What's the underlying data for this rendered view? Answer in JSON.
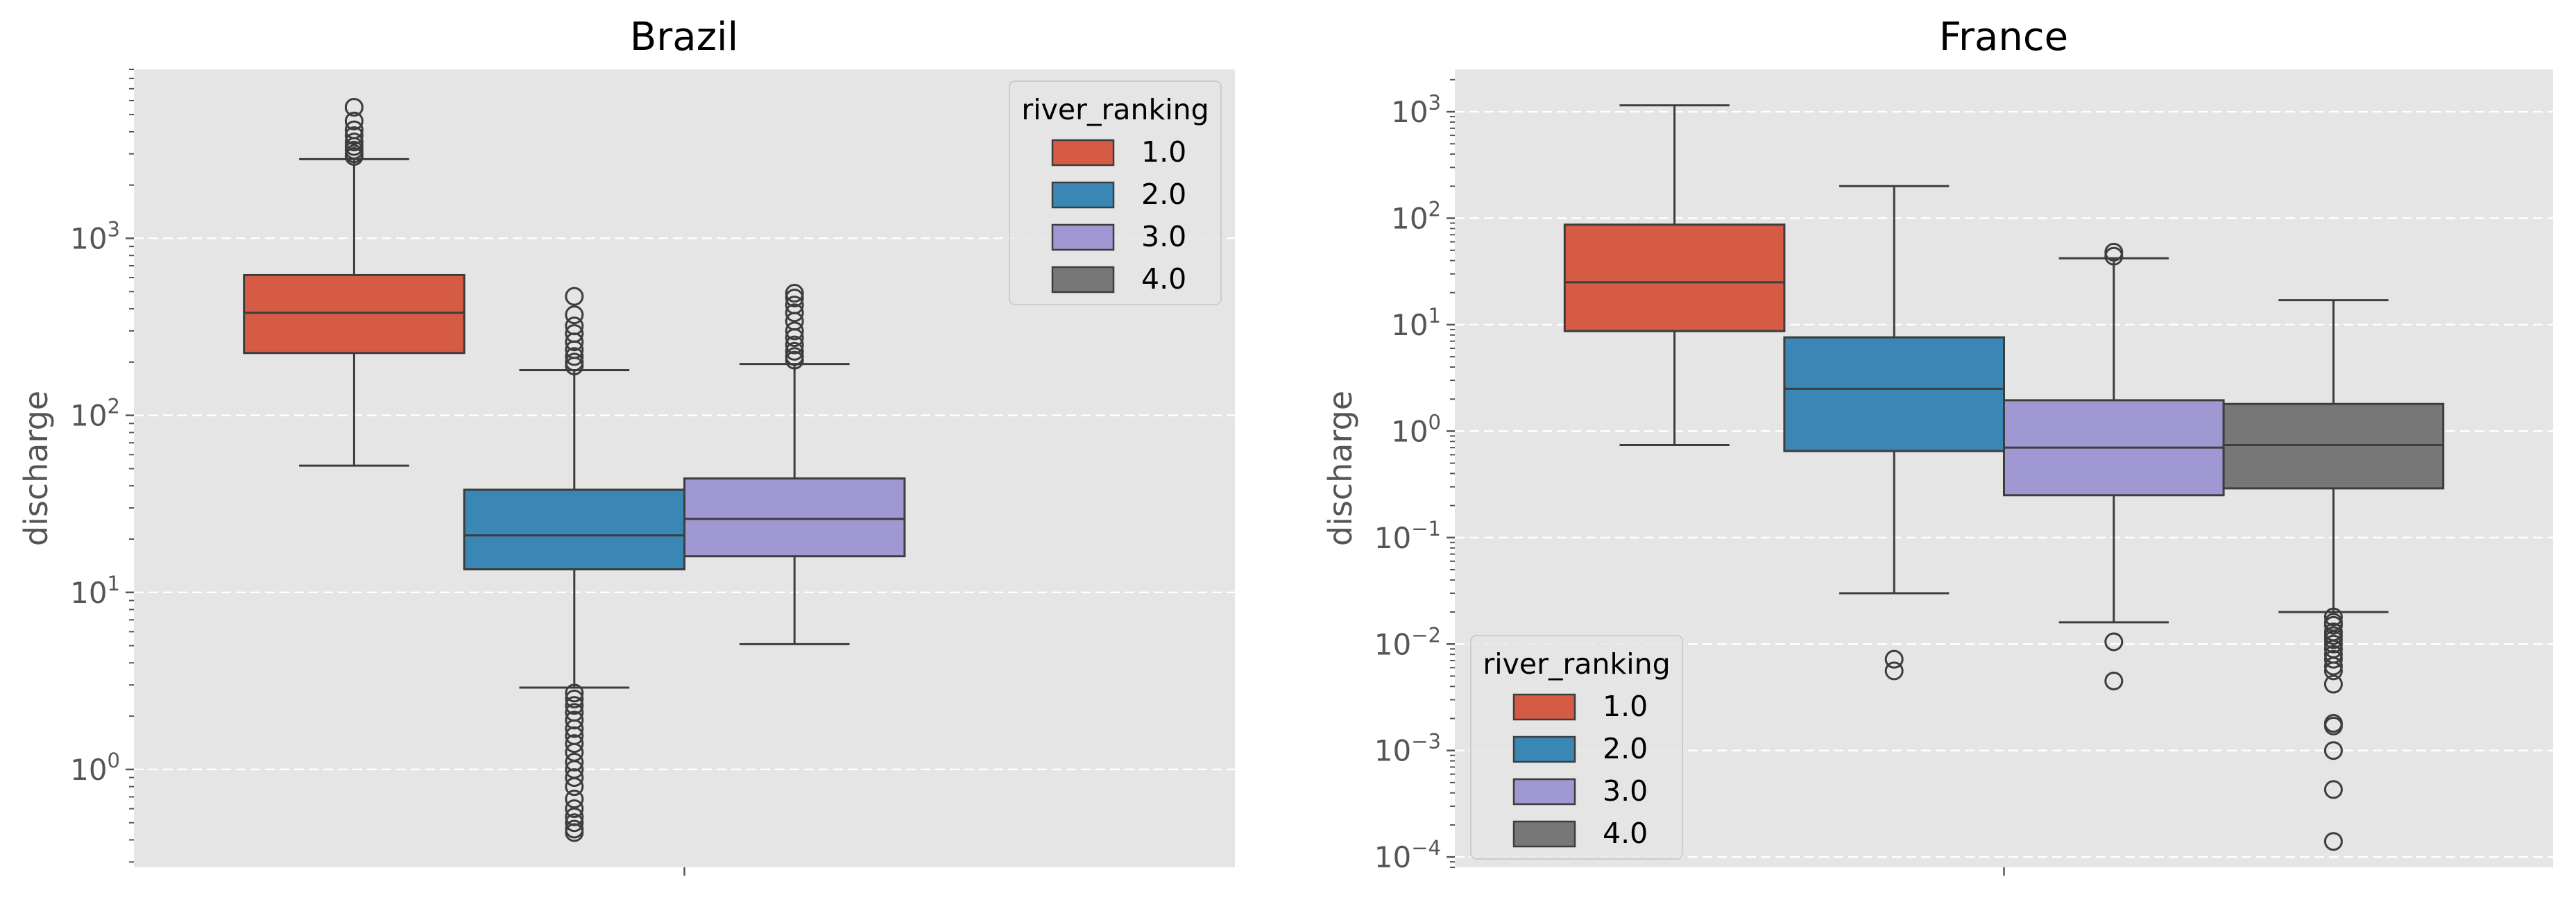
{
  "colors": {
    "background": "#e5e5e5",
    "grid": "#ffffff",
    "box_edge": "#3d3d3d",
    "series": [
      "#d55b45",
      "#3a87b5",
      "#9f98d2",
      "#777777"
    ]
  },
  "chart_data": [
    {
      "type": "box",
      "title": "Brazil",
      "xlabel": "",
      "ylabel": "discharge",
      "yscale": "log",
      "ylim": [
        0.28,
        9000
      ],
      "yticks": [
        1,
        10,
        100,
        1000
      ],
      "ytick_labels": [
        {
          "base": "10",
          "exp": "0"
        },
        {
          "base": "10",
          "exp": "1"
        },
        {
          "base": "10",
          "exp": "2"
        },
        {
          "base": "10",
          "exp": "3"
        }
      ],
      "grid": true,
      "legend": {
        "title": "river_ranking",
        "position": "upper-right",
        "labels": [
          "1.0",
          "2.0",
          "3.0",
          "4.0"
        ]
      },
      "series": [
        {
          "name": "1.0",
          "whisker_low": 52,
          "q1": 225,
          "median": 380,
          "q3": 620,
          "whisker_high": 2800,
          "outliers": [
            2900,
            3000,
            3150,
            3300,
            3500,
            3800,
            4100,
            4600,
            5500
          ]
        },
        {
          "name": "2.0",
          "whisker_low": 2.9,
          "q1": 13.5,
          "median": 21,
          "q3": 38,
          "whisker_high": 180,
          "outliers": [
            190,
            200,
            215,
            235,
            260,
            290,
            320,
            370,
            470,
            2.7,
            2.5,
            2.3,
            2.1,
            1.9,
            1.7,
            1.55,
            1.4,
            1.25,
            1.1,
            1.0,
            0.9,
            0.8,
            0.68,
            0.6,
            0.54,
            0.5,
            0.46,
            0.44
          ]
        },
        {
          "name": "3.0",
          "whisker_low": 5.1,
          "q1": 16,
          "median": 26,
          "q3": 44,
          "whisker_high": 195,
          "outliers": [
            205,
            215,
            230,
            250,
            275,
            300,
            340,
            380,
            420,
            460,
            490
          ]
        }
      ]
    },
    {
      "type": "box",
      "title": "France",
      "xlabel": "",
      "ylabel": "discharge",
      "yscale": "log",
      "ylim": [
        8e-05,
        2500
      ],
      "yticks": [
        0.0001,
        0.001,
        0.01,
        0.1,
        1,
        10,
        100,
        1000
      ],
      "ytick_labels": [
        {
          "base": "10",
          "exp": "−4"
        },
        {
          "base": "10",
          "exp": "−3"
        },
        {
          "base": "10",
          "exp": "−2"
        },
        {
          "base": "10",
          "exp": "−1"
        },
        {
          "base": "10",
          "exp": "0"
        },
        {
          "base": "10",
          "exp": "1"
        },
        {
          "base": "10",
          "exp": "2"
        },
        {
          "base": "10",
          "exp": "3"
        }
      ],
      "grid": true,
      "legend": {
        "title": "river_ranking",
        "position": "lower-left",
        "labels": [
          "1.0",
          "2.0",
          "3.0",
          "4.0"
        ]
      },
      "series": [
        {
          "name": "1.0",
          "whisker_low": 0.74,
          "q1": 8.7,
          "median": 25,
          "q3": 87,
          "whisker_high": 1150,
          "outliers": []
        },
        {
          "name": "2.0",
          "whisker_low": 0.03,
          "q1": 0.65,
          "median": 2.5,
          "q3": 7.6,
          "whisker_high": 200,
          "outliers": [
            0.0072,
            0.0056
          ]
        },
        {
          "name": "3.0",
          "whisker_low": 0.016,
          "q1": 0.25,
          "median": 0.7,
          "q3": 1.95,
          "whisker_high": 42,
          "outliers": [
            48,
            44,
            0.0105,
            0.0045
          ]
        },
        {
          "name": "4.0",
          "whisker_low": 0.02,
          "q1": 0.29,
          "median": 0.74,
          "q3": 1.8,
          "whisker_high": 17,
          "outliers": [
            0.018,
            0.016,
            0.015,
            0.013,
            0.012,
            0.011,
            0.01,
            0.009,
            0.008,
            0.0072,
            0.0062,
            0.0056,
            0.0042,
            0.0018,
            0.0017,
            0.001,
            0.00043,
            0.00014
          ]
        }
      ]
    }
  ]
}
